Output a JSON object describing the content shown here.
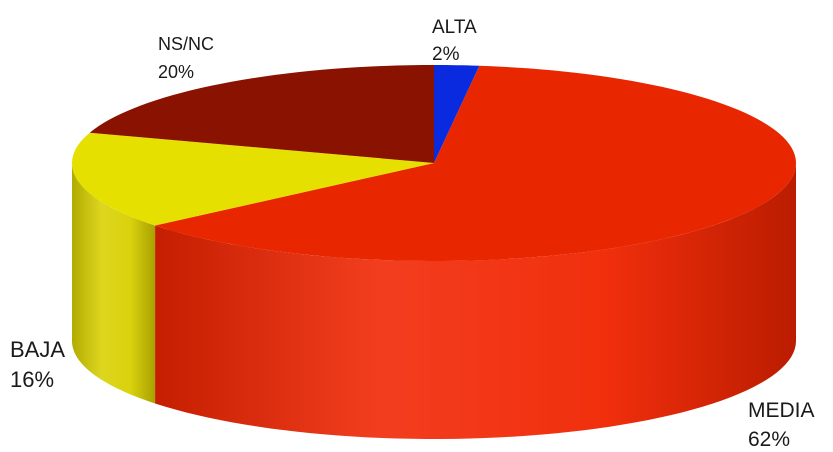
{
  "chart_data": {
    "type": "pie",
    "title": "",
    "categories": [
      "ALTA",
      "MEDIA",
      "BAJA",
      "NS/NC"
    ],
    "values": [
      2,
      62,
      16,
      20
    ],
    "labels": [
      "2%",
      "62%",
      "16%",
      "20%"
    ],
    "colors": [
      "#0a2ae0",
      "#e82600",
      "#e6e000",
      "#8a1200"
    ],
    "side_colors": [
      "#0a20b0",
      "#f02400",
      "#d8d000",
      "#6a0d00"
    ],
    "style": "3d-exploded-none",
    "legend": "none",
    "start": "top-center",
    "direction": "clockwise"
  }
}
